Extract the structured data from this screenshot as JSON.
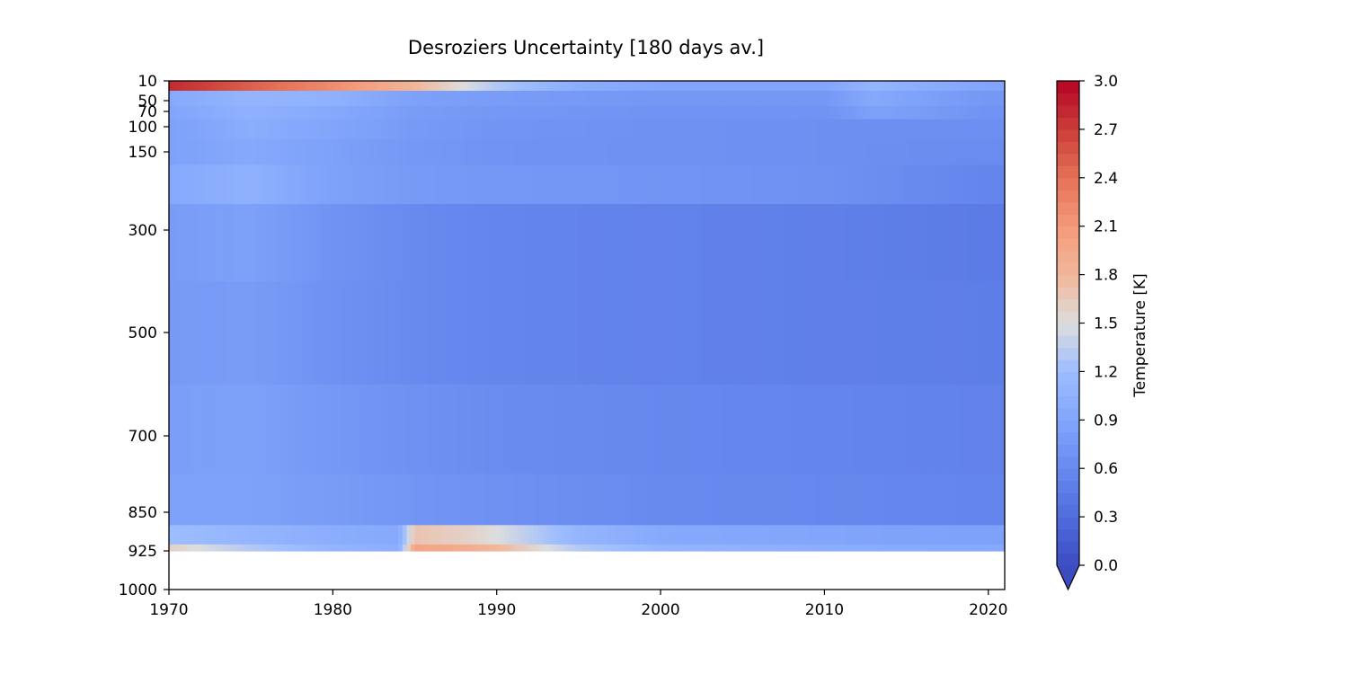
{
  "chart_data": {
    "type": "heatmap",
    "title": "Desroziers Uncertainty [180 days av.]",
    "xlabel": "",
    "ylabel": "",
    "xlim": [
      1970,
      2021
    ],
    "x_ticks": [
      1970,
      1980,
      1990,
      2000,
      2010,
      2020
    ],
    "y_levels": [
      10,
      50,
      70,
      100,
      150,
      300,
      500,
      700,
      850,
      925,
      1000
    ],
    "y_tick_labels": [
      "10",
      "50",
      "70",
      "100",
      "150",
      "300",
      "500",
      "700",
      "850",
      "925",
      "1000"
    ],
    "y_inverted": true,
    "data_max_level": 925,
    "colorbar": {
      "label": "Temperature [K]",
      "range": [
        0.0,
        3.0
      ],
      "ticks": [
        "0.0",
        "0.3",
        "0.6",
        "0.9",
        "1.2",
        "1.5",
        "1.8",
        "2.1",
        "2.4",
        "2.7",
        "3.0"
      ],
      "extend": "min",
      "colormap": "coolwarm"
    },
    "levels": [
      {
        "level": 10,
        "x": [
          1970,
          1972,
          1975,
          1980,
          1985,
          1990,
          1995,
          2000,
          2005,
          2010,
          2013,
          2016,
          2020,
          2021
        ],
        "values": [
          2.8,
          2.7,
          2.5,
          2.2,
          1.8,
          1.3,
          1.0,
          0.9,
          0.9,
          0.9,
          1.1,
          1.0,
          0.9,
          0.9
        ]
      },
      {
        "level": 50,
        "x": [
          1970,
          1975,
          1980,
          1985,
          1990,
          2000,
          2010,
          2013,
          2016,
          2020,
          2021
        ],
        "values": [
          0.95,
          1.1,
          1.05,
          0.85,
          0.8,
          0.75,
          0.75,
          0.95,
          0.85,
          0.75,
          0.75
        ]
      },
      {
        "level": 70,
        "x": [
          1970,
          1975,
          1980,
          1985,
          1990,
          2000,
          2010,
          2013,
          2016,
          2020,
          2021
        ],
        "values": [
          0.9,
          1.05,
          0.95,
          0.8,
          0.75,
          0.7,
          0.7,
          0.85,
          0.8,
          0.7,
          0.7
        ]
      },
      {
        "level": 100,
        "x": [
          1970,
          1975,
          1980,
          1985,
          1990,
          2000,
          2010,
          2020,
          2021
        ],
        "values": [
          0.85,
          1.0,
          0.9,
          0.78,
          0.72,
          0.68,
          0.66,
          0.65,
          0.65
        ]
      },
      {
        "level": 150,
        "x": [
          1970,
          1975,
          1980,
          1985,
          1990,
          2000,
          2010,
          2020,
          2021
        ],
        "values": [
          0.85,
          0.95,
          0.85,
          0.75,
          0.7,
          0.68,
          0.66,
          0.62,
          0.62
        ]
      },
      {
        "level": 200,
        "x": [
          1970,
          1975,
          1980,
          1985,
          1990,
          2000,
          2010,
          2020,
          2021
        ],
        "values": [
          0.95,
          1.05,
          0.85,
          0.78,
          0.75,
          0.72,
          0.68,
          0.55,
          0.55
        ]
      },
      {
        "level": 300,
        "x": [
          1970,
          1975,
          1980,
          1985,
          1990,
          2000,
          2010,
          2020,
          2021
        ],
        "values": [
          0.8,
          0.85,
          0.7,
          0.6,
          0.55,
          0.52,
          0.5,
          0.45,
          0.45
        ]
      },
      {
        "level": 500,
        "x": [
          1970,
          1975,
          1980,
          1985,
          1990,
          2000,
          2010,
          2020,
          2021
        ],
        "values": [
          0.78,
          0.8,
          0.68,
          0.6,
          0.55,
          0.52,
          0.5,
          0.48,
          0.48
        ]
      },
      {
        "level": 700,
        "x": [
          1970,
          1975,
          1980,
          1985,
          1990,
          2000,
          2010,
          2020,
          2021
        ],
        "values": [
          0.82,
          0.85,
          0.75,
          0.68,
          0.62,
          0.58,
          0.55,
          0.52,
          0.52
        ]
      },
      {
        "level": 850,
        "x": [
          1970,
          1975,
          1980,
          1985,
          1990,
          2000,
          2010,
          2020,
          2021
        ],
        "values": [
          0.85,
          0.85,
          0.8,
          0.72,
          0.68,
          0.6,
          0.58,
          0.55,
          0.55
        ]
      },
      {
        "level": 900,
        "x": [
          1970,
          1975,
          1980,
          1984,
          1985,
          1988,
          1990,
          1995,
          2000,
          2010,
          2020,
          2021
        ],
        "values": [
          1.2,
          1.1,
          1.0,
          0.95,
          1.7,
          1.6,
          1.5,
          1.1,
          0.95,
          0.9,
          0.85,
          0.85
        ]
      },
      {
        "level": 925,
        "x": [
          1970,
          1975,
          1980,
          1984,
          1985,
          1988,
          1990,
          1995,
          2000,
          2010,
          2020,
          2021
        ],
        "values": [
          1.6,
          1.3,
          1.1,
          1.0,
          2.0,
          1.9,
          1.8,
          1.3,
          1.1,
          1.0,
          0.95,
          0.95
        ]
      }
    ]
  }
}
